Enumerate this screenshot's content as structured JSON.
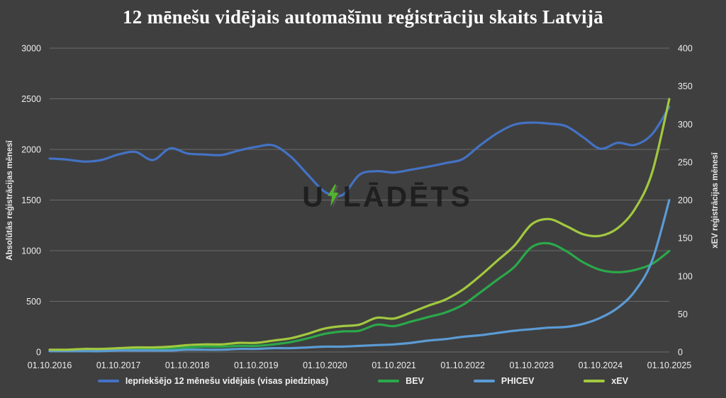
{
  "watermark": {
    "prefix": "U",
    "suffix": "LĀDĒTS",
    "bolt_color": "#52B42D"
  },
  "colors": {
    "background": "#3F3F3F",
    "grid": "#6B6B6B",
    "tick_text": "#EDEDED",
    "title_text": "#FFFFFF",
    "avg_blue": "#4472C4",
    "bev_green": "#2BA84A",
    "phicev_blue": "#5B9BD5",
    "xev_green": "#A2C83F"
  },
  "chart_data": {
    "type": "line",
    "title": "12 mēnešu vidējais automašīnu reģistrāciju skaits Latvijā",
    "grid": "horizontal",
    "legend_position": "bottom",
    "left_axis": {
      "label": "Absolūtās reģistrācijas mēnesī",
      "min": 0,
      "max": 3000,
      "ticks": [
        0,
        500,
        1000,
        1500,
        2000,
        2500,
        3000
      ]
    },
    "right_axis": {
      "label": "xEV reģistrācijas mēnesī",
      "min": 0,
      "max": 400,
      "ticks": [
        0,
        50,
        100,
        150,
        200,
        250,
        300,
        350,
        400
      ]
    },
    "x_tick_labels": [
      "01.10.2016",
      "01.10.2017",
      "01.10.2018",
      "01.10.2019",
      "01.10.2020",
      "01.10.2021",
      "01.10.2022",
      "01.10.2023",
      "01.10.2024",
      "01.10.2025"
    ],
    "x_tick_positions": [
      2016.75,
      2017.75,
      2018.75,
      2019.75,
      2020.75,
      2021.75,
      2022.75,
      2023.75,
      2024.75,
      2025.75
    ],
    "x": [
      2016.75,
      2017.0,
      2017.25,
      2017.5,
      2017.75,
      2018.0,
      2018.25,
      2018.5,
      2018.75,
      2019.0,
      2019.25,
      2019.5,
      2019.75,
      2020.0,
      2020.25,
      2020.5,
      2020.75,
      2021.0,
      2021.25,
      2021.5,
      2021.75,
      2022.0,
      2022.25,
      2022.5,
      2022.75,
      2023.0,
      2023.25,
      2023.5,
      2023.75,
      2024.0,
      2024.25,
      2024.5,
      2024.75,
      2025.0,
      2025.25,
      2025.5,
      2025.75
    ],
    "series": [
      {
        "id": "avg",
        "name": "Iepriekšējo 12 mēnešu vidējais (visas piedziņas)",
        "axis": "left",
        "color": "#4472C4",
        "values": [
          1910,
          1900,
          1880,
          1895,
          1950,
          1975,
          1895,
          2010,
          1960,
          1950,
          1945,
          1990,
          2025,
          2040,
          1930,
          1750,
          1580,
          1548,
          1750,
          1785,
          1772,
          1800,
          1830,
          1865,
          1905,
          2040,
          2160,
          2245,
          2265,
          2255,
          2230,
          2120,
          2007,
          2065,
          2045,
          2150,
          2420
        ]
      },
      {
        "id": "bev",
        "name": "BEV",
        "axis": "right",
        "color": "#2BA84A",
        "values": [
          2,
          2,
          3,
          3,
          3,
          4,
          4,
          5,
          6,
          7,
          7,
          8,
          8,
          10,
          13,
          18,
          24,
          27,
          28,
          36,
          34,
          40,
          46,
          52,
          62,
          78,
          95,
          112,
          138,
          143,
          133,
          118,
          108,
          105,
          108,
          116,
          133
        ]
      },
      {
        "id": "phicev",
        "name": "PHICEV",
        "axis": "right",
        "color": "#5B9BD5",
        "values": [
          1,
          1,
          1,
          1,
          2,
          2,
          2,
          2,
          3,
          3,
          3,
          4,
          4,
          5,
          5,
          6,
          7,
          7,
          8,
          9,
          10,
          12,
          15,
          17,
          20,
          22,
          25,
          28,
          30,
          32,
          33,
          37,
          45,
          58,
          80,
          120,
          200
        ]
      },
      {
        "id": "xev",
        "name": "xEV",
        "axis": "right",
        "color": "#A2C83F",
        "values": [
          3,
          3,
          4,
          4,
          5,
          6,
          6,
          7,
          9,
          10,
          10,
          12,
          12,
          15,
          18,
          24,
          31,
          34,
          36,
          45,
          44,
          52,
          61,
          69,
          82,
          100,
          120,
          140,
          168,
          175,
          166,
          155,
          153,
          163,
          188,
          236,
          333
        ]
      }
    ]
  }
}
